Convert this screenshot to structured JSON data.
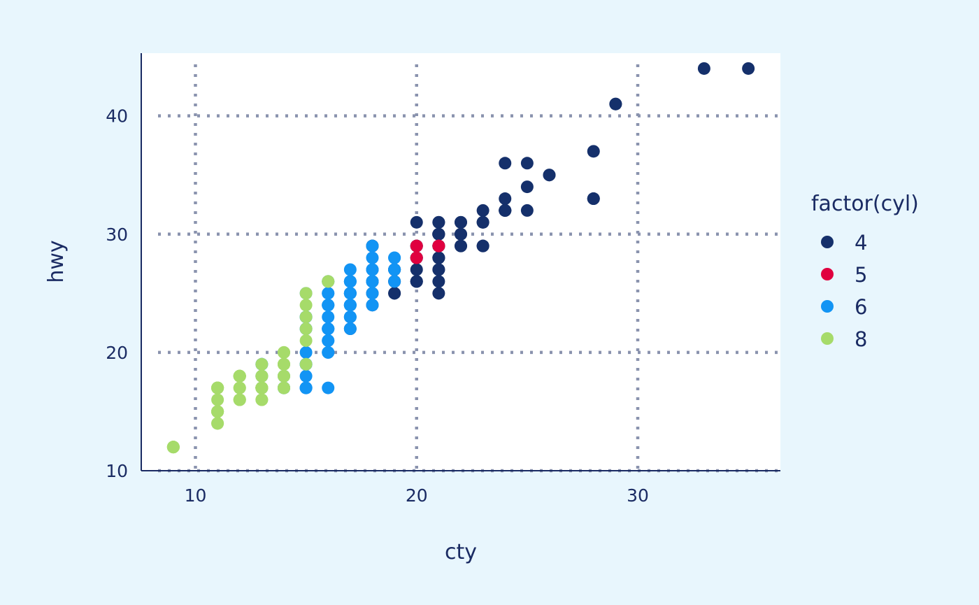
{
  "chart_data": {
    "type": "scatter",
    "title": "",
    "xlabel": "cty",
    "ylabel": "hwy",
    "xlim": [
      7.55,
      36.45
    ],
    "ylim": [
      10.0,
      45.3
    ],
    "xticks": [
      10,
      20,
      30
    ],
    "yticks": [
      10,
      20,
      30,
      40
    ],
    "grid": true,
    "legend": {
      "title": "factor(cyl)",
      "placement": "right"
    },
    "colors": {
      "page_background": "#E8F6FD",
      "panel_background": "#FFFFFF",
      "axis": "#1A2B63",
      "text": "#1A2B63",
      "grid": "#8A93AE"
    },
    "series": [
      {
        "name": "4",
        "color": "#15306B",
        "points": [
          [
            18,
            29
          ],
          [
            21,
            29
          ],
          [
            20,
            31
          ],
          [
            21,
            30
          ],
          [
            18,
            26
          ],
          [
            18,
            26
          ],
          [
            18,
            26
          ],
          [
            18,
            25
          ],
          [
            20,
            28
          ],
          [
            19,
            27
          ],
          [
            20,
            29
          ],
          [
            20,
            26
          ],
          [
            19,
            26
          ],
          [
            17,
            22
          ],
          [
            18,
            24
          ],
          [
            17,
            25
          ],
          [
            21,
            27
          ],
          [
            19,
            25
          ],
          [
            19,
            27
          ],
          [
            19,
            27
          ],
          [
            33,
            44
          ],
          [
            35,
            44
          ],
          [
            24,
            36
          ],
          [
            26,
            35
          ],
          [
            24,
            32
          ],
          [
            28,
            37
          ],
          [
            22,
            31
          ],
          [
            22,
            30
          ],
          [
            21,
            28
          ],
          [
            21,
            29
          ],
          [
            21,
            27
          ],
          [
            21,
            25
          ],
          [
            21,
            29
          ],
          [
            18,
            29
          ],
          [
            28,
            33
          ],
          [
            24,
            32
          ],
          [
            25,
            34
          ],
          [
            23,
            29
          ],
          [
            21,
            31
          ],
          [
            22,
            29
          ],
          [
            24,
            32
          ],
          [
            25,
            32
          ],
          [
            29,
            41
          ],
          [
            19,
            25
          ],
          [
            21,
            26
          ],
          [
            22,
            31
          ],
          [
            26,
            35
          ],
          [
            19,
            26
          ],
          [
            22,
            29
          ],
          [
            21,
            29
          ],
          [
            23,
            32
          ],
          [
            25,
            36
          ],
          [
            23,
            31
          ],
          [
            24,
            32
          ],
          [
            20,
            27
          ],
          [
            21,
            30
          ],
          [
            21,
            31
          ],
          [
            23,
            29
          ],
          [
            28,
            33
          ],
          [
            21,
            30
          ],
          [
            21,
            29
          ],
          [
            20,
            26
          ],
          [
            22,
            30
          ],
          [
            23,
            31
          ],
          [
            24,
            33
          ],
          [
            24,
            32
          ],
          [
            21,
            28
          ],
          [
            21,
            30
          ],
          [
            21,
            29
          ],
          [
            29,
            41
          ],
          [
            20,
            28
          ],
          [
            20,
            29
          ],
          [
            20,
            26
          ],
          [
            21,
            28
          ],
          [
            21,
            29
          ]
        ]
      },
      {
        "name": "5",
        "color": "#E0003F",
        "points": [
          [
            20,
            28
          ],
          [
            20,
            29
          ],
          [
            21,
            29
          ],
          [
            21,
            29
          ]
        ]
      },
      {
        "name": "6",
        "color": "#1294F4",
        "points": [
          [
            16,
            26
          ],
          [
            18,
            26
          ],
          [
            17,
            25
          ],
          [
            16,
            24
          ],
          [
            16,
            25
          ],
          [
            15,
            25
          ],
          [
            16,
            25
          ],
          [
            15,
            23
          ],
          [
            17,
            27
          ],
          [
            17,
            25
          ],
          [
            17,
            26
          ],
          [
            16,
            24
          ],
          [
            15,
            23
          ],
          [
            15,
            22
          ],
          [
            16,
            24
          ],
          [
            16,
            22
          ],
          [
            14,
            17
          ],
          [
            16,
            22
          ],
          [
            17,
            24
          ],
          [
            17,
            24
          ],
          [
            15,
            22
          ],
          [
            15,
            23
          ],
          [
            16,
            26
          ],
          [
            15,
            17
          ],
          [
            14,
            18
          ],
          [
            15,
            17
          ],
          [
            15,
            19
          ],
          [
            15,
            17
          ],
          [
            14,
            17
          ],
          [
            13,
            19
          ],
          [
            13,
            19
          ],
          [
            13,
            17
          ],
          [
            14,
            17
          ],
          [
            14,
            17
          ],
          [
            13,
            18
          ],
          [
            16,
            17
          ],
          [
            16,
            22
          ],
          [
            17,
            22
          ],
          [
            18,
            28
          ],
          [
            18,
            29
          ],
          [
            17,
            26
          ],
          [
            18,
            26
          ],
          [
            18,
            26
          ],
          [
            19,
            27
          ],
          [
            19,
            27
          ],
          [
            19,
            26
          ],
          [
            18,
            25
          ],
          [
            17,
            23
          ],
          [
            17,
            25
          ],
          [
            18,
            27
          ],
          [
            17,
            24
          ],
          [
            17,
            26
          ],
          [
            17,
            24
          ],
          [
            17,
            26
          ],
          [
            18,
            27
          ],
          [
            18,
            26
          ],
          [
            19,
            28
          ],
          [
            18,
            24
          ],
          [
            17,
            23
          ],
          [
            16,
            20
          ],
          [
            16,
            20
          ],
          [
            15,
            19
          ],
          [
            15,
            17
          ],
          [
            13,
            17
          ],
          [
            14,
            17
          ],
          [
            15,
            20
          ],
          [
            15,
            18
          ],
          [
            17,
            24
          ],
          [
            17,
            25
          ],
          [
            16,
            23
          ],
          [
            19,
            28
          ],
          [
            18,
            26
          ],
          [
            16,
            21
          ],
          [
            16,
            21
          ],
          [
            17,
            23
          ],
          [
            18,
            27
          ],
          [
            15,
            19
          ],
          [
            13,
            18
          ],
          [
            15,
            19
          ]
        ]
      },
      {
        "name": "8",
        "color": "#A6DB6A",
        "points": [
          [
            16,
            26
          ],
          [
            15,
            25
          ],
          [
            16,
            26
          ],
          [
            14,
            20
          ],
          [
            11,
            15
          ],
          [
            14,
            20
          ],
          [
            13,
            17
          ],
          [
            12,
            17
          ],
          [
            12,
            18
          ],
          [
            11,
            17
          ],
          [
            12,
            16
          ],
          [
            12,
            16
          ],
          [
            11,
            15
          ],
          [
            12,
            18
          ],
          [
            9,
            12
          ],
          [
            11,
            15
          ],
          [
            12,
            16
          ],
          [
            9,
            12
          ],
          [
            11,
            14
          ],
          [
            11,
            14
          ],
          [
            11,
            15
          ],
          [
            9,
            12
          ],
          [
            14,
            19
          ],
          [
            13,
            17
          ],
          [
            13,
            17
          ],
          [
            14,
            17
          ],
          [
            15,
            22
          ],
          [
            15,
            21
          ],
          [
            15,
            24
          ],
          [
            15,
            23
          ],
          [
            11,
            17
          ],
          [
            11,
            17
          ],
          [
            11,
            17
          ],
          [
            13,
            19
          ],
          [
            12,
            18
          ],
          [
            14,
            19
          ],
          [
            13,
            17
          ],
          [
            13,
            16
          ],
          [
            13,
            18
          ],
          [
            13,
            16
          ],
          [
            12,
            18
          ],
          [
            13,
            17
          ],
          [
            12,
            18
          ],
          [
            13,
            17
          ],
          [
            11,
            16
          ],
          [
            13,
            18
          ],
          [
            14,
            17
          ],
          [
            15,
            19
          ],
          [
            14,
            18
          ],
          [
            13,
            17
          ],
          [
            13,
            17
          ],
          [
            14,
            18
          ],
          [
            14,
            19
          ],
          [
            13,
            17
          ],
          [
            11,
            15
          ],
          [
            11,
            17
          ],
          [
            12,
            18
          ],
          [
            13,
            17
          ],
          [
            9,
            12
          ],
          [
            11,
            15
          ],
          [
            14,
            19
          ],
          [
            12,
            17
          ],
          [
            11,
            17
          ],
          [
            12,
            18
          ],
          [
            11,
            17
          ],
          [
            13,
            17
          ],
          [
            9,
            12
          ],
          [
            13,
            18
          ],
          [
            14,
            17
          ],
          [
            13,
            17
          ]
        ]
      }
    ]
  }
}
